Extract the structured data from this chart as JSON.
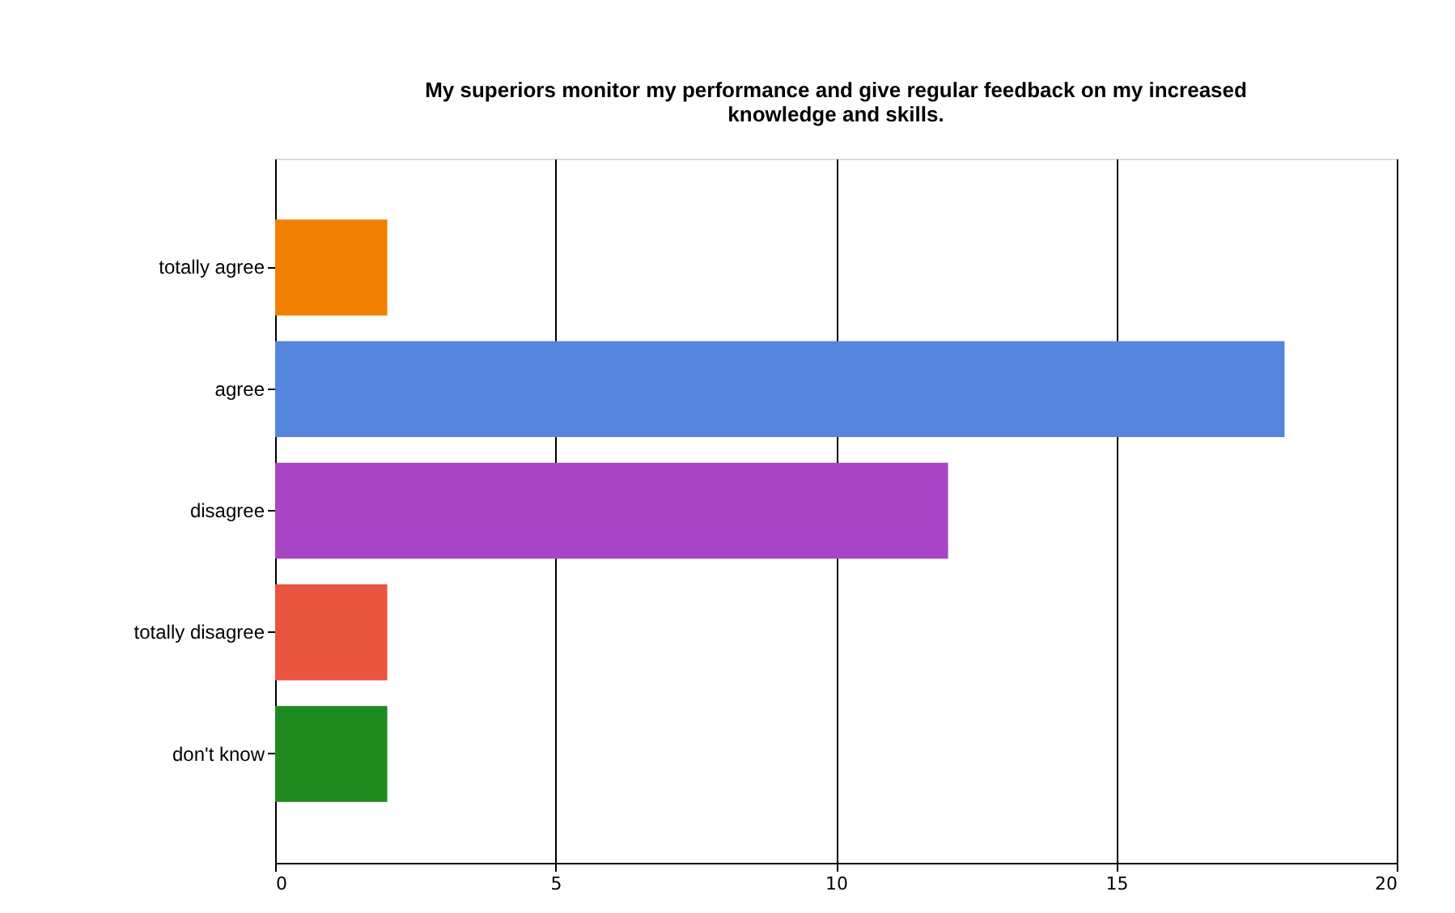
{
  "chart_data": {
    "type": "bar",
    "orientation": "horizontal",
    "title": "My superiors monitor my performance and give regular feedback on my increased knowledge and skills.",
    "categories": [
      "totally agree",
      "agree",
      "disagree",
      "totally disagree",
      "don't know"
    ],
    "values": [
      2,
      18,
      12,
      2,
      2
    ],
    "colors": [
      "#f08000",
      "#5585dd",
      "#a845c5",
      "#e85540",
      "#1f8a1f"
    ],
    "xlim": [
      0,
      20
    ],
    "xticks": [
      0,
      5,
      10,
      15,
      20
    ],
    "grid": "x"
  }
}
